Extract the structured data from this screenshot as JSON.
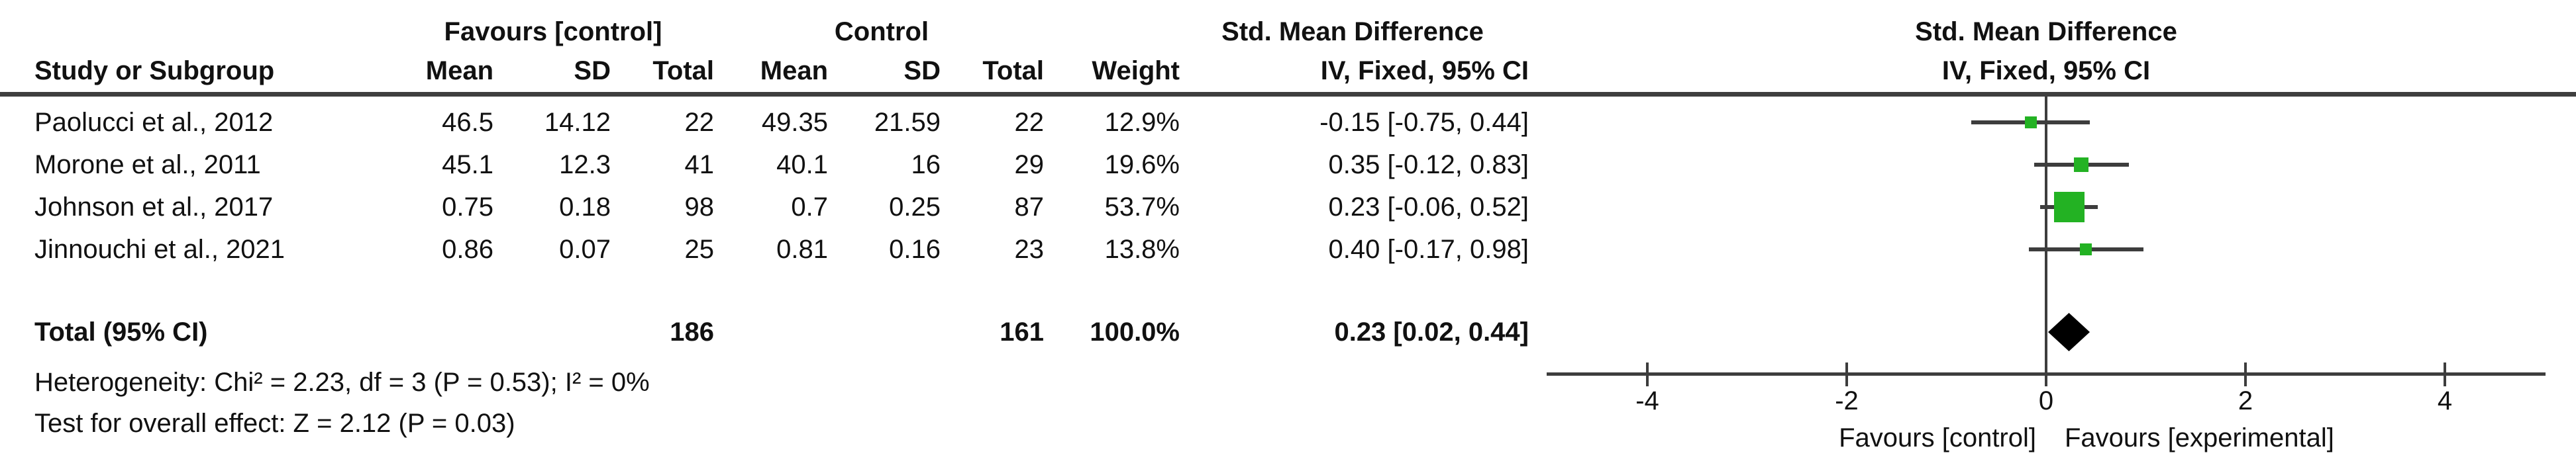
{
  "figure": {
    "group_headers": {
      "experimental": "Favours [control]",
      "control": "Control",
      "effect": "Std. Mean Difference",
      "plot_effect": "Std. Mean Difference"
    },
    "column_headers": {
      "study": "Study or Subgroup",
      "exp_mean": "Mean",
      "exp_sd": "SD",
      "exp_total": "Total",
      "ctrl_mean": "Mean",
      "ctrl_sd": "SD",
      "ctrl_total": "Total",
      "weight": "Weight",
      "effect_ci": "IV, Fixed, 95% CI",
      "plot_effect_ci": "IV, Fixed, 95% CI"
    },
    "rows": [
      {
        "study": "Paolucci et al., 2012",
        "cells": [
          "46.5",
          "14.12",
          "22",
          "49.35",
          "21.59",
          "22",
          "12.9%",
          "-0.15 [-0.75, 0.44]"
        ]
      },
      {
        "study": "Morone et al., 2011",
        "cells": [
          "45.1",
          "12.3",
          "41",
          "40.1",
          "16",
          "29",
          "19.6%",
          "0.35 [-0.12, 0.83]"
        ]
      },
      {
        "study": "Johnson et al., 2017",
        "cells": [
          "0.75",
          "0.18",
          "98",
          "0.7",
          "0.25",
          "87",
          "53.7%",
          "0.23 [-0.06, 0.52]"
        ]
      },
      {
        "study": "Jinnouchi et al., 2021",
        "cells": [
          "0.86",
          "0.07",
          "25",
          "0.81",
          "0.16",
          "23",
          "13.8%",
          "0.40 [-0.17, 0.98]"
        ]
      }
    ],
    "total_row": {
      "label": "Total (95% CI)",
      "exp_total": "186",
      "ctrl_total": "161",
      "weight": "100.0%",
      "ci": "0.23 [0.02, 0.44]"
    },
    "footnotes": [
      "Heterogeneity: Chi² = 2.23, df = 3 (P = 0.53); I² = 0%",
      "Test for overall effect: Z = 2.12 (P = 0.03)"
    ]
  },
  "chart_data": {
    "type": "forest",
    "effect_measure": "Std. Mean Difference (IV, Fixed, 95% CI)",
    "x_ticks": [
      -4,
      -2,
      0,
      2,
      4
    ],
    "xlim": [
      -5,
      5
    ],
    "grid": false,
    "legend_position": "none",
    "x_axis_labels": {
      "left": "Favours [control]",
      "right": "Favours [experimental]"
    },
    "studies": [
      {
        "name": "Paolucci et al., 2012",
        "smd": -0.15,
        "ci_low": -0.75,
        "ci_high": 0.44,
        "weight_pct": 12.9
      },
      {
        "name": "Morone et al., 2011",
        "smd": 0.35,
        "ci_low": -0.12,
        "ci_high": 0.83,
        "weight_pct": 19.6
      },
      {
        "name": "Johnson et al., 2017",
        "smd": 0.23,
        "ci_low": -0.06,
        "ci_high": 0.52,
        "weight_pct": 53.7
      },
      {
        "name": "Jinnouchi et al., 2021",
        "smd": 0.4,
        "ci_low": -0.17,
        "ci_high": 0.98,
        "weight_pct": 13.8
      }
    ],
    "total": {
      "label": "Total (95% CI)",
      "smd": 0.23,
      "ci_low": 0.02,
      "ci_high": 0.44,
      "exp_total": 186,
      "ctrl_total": 161,
      "weight_pct": 100.0
    },
    "heterogeneity": {
      "chi2": 2.23,
      "df": 3,
      "p": 0.53,
      "i2_pct": 0
    },
    "overall_effect": {
      "z": 2.12,
      "p": 0.03
    },
    "colors": {
      "marker": "#23b223",
      "diamond": "#000000",
      "line": "#3d3d3d"
    }
  }
}
